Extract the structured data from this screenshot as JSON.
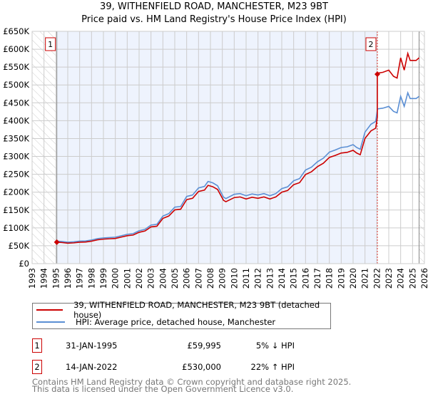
{
  "title": "39, WITHENFIELD ROAD, MANCHESTER, M23 9BT",
  "subtitle": "Price paid vs. HM Land Registry's House Price Index (HPI)",
  "colors": {
    "property": "#cc0000",
    "hpi": "#5b8fd4",
    "shade": "#eef3fd"
  },
  "chart_data": {
    "type": "line",
    "ylim": [
      0,
      650000
    ],
    "xlim": [
      1993,
      2026
    ],
    "yticks": [
      "£0",
      "£50K",
      "£100K",
      "£150K",
      "£200K",
      "£250K",
      "£300K",
      "£350K",
      "£400K",
      "£450K",
      "£500K",
      "£550K",
      "£600K",
      "£650K"
    ],
    "xticks": [
      "1993",
      "1994",
      "1995",
      "1996",
      "1997",
      "1998",
      "1999",
      "2000",
      "2001",
      "2002",
      "2003",
      "2004",
      "2005",
      "2006",
      "2007",
      "2008",
      "2009",
      "2010",
      "2011",
      "2012",
      "2013",
      "2014",
      "2015",
      "2016",
      "2017",
      "2018",
      "2019",
      "2020",
      "2021",
      "2022",
      "2023",
      "2024",
      "2025",
      "2026"
    ],
    "series": [
      {
        "name": "HPI: Average price, detached house, Manchester",
        "x": [
          1995.08,
          1995.5,
          1996,
          1996.5,
          1997,
          1997.5,
          1998,
          1998.5,
          1999,
          1999.5,
          2000,
          2000.5,
          2001,
          2001.5,
          2002,
          2002.5,
          2003,
          2003.5,
          2004,
          2004.5,
          2005,
          2005.5,
          2006,
          2006.5,
          2007,
          2007.5,
          2007.8,
          2008.2,
          2008.6,
          2009.1,
          2009.3,
          2010,
          2010.5,
          2011,
          2011.5,
          2012,
          2012.5,
          2013,
          2013.5,
          2014,
          2014.5,
          2015,
          2015.5,
          2016,
          2016.5,
          2017,
          2017.5,
          2018,
          2018.5,
          2019,
          2019.5,
          2020,
          2020.3,
          2020.6,
          2021,
          2021.5,
          2021.9,
          2022.05,
          2022.5,
          2023,
          2023.4,
          2023.7,
          2024,
          2024.3,
          2024.6,
          2024.8,
          2025,
          2025.3,
          2025.55
        ],
        "values": [
          63000,
          62000,
          60000,
          61000,
          63000,
          63500,
          66000,
          70000,
          72000,
          73000,
          74000,
          78000,
          82000,
          84000,
          92000,
          96000,
          108000,
          110000,
          133000,
          140000,
          158000,
          160000,
          188000,
          192000,
          212000,
          216000,
          230000,
          226000,
          218000,
          186000,
          182000,
          194000,
          196000,
          190000,
          195000,
          192000,
          196000,
          190000,
          196000,
          210000,
          215000,
          232000,
          238000,
          262000,
          270000,
          285000,
          295000,
          312000,
          318000,
          325000,
          327000,
          333000,
          325000,
          320000,
          368000,
          390000,
          398000,
          433000,
          435000,
          440000,
          426000,
          422000,
          468000,
          440000,
          478000,
          462000,
          462000,
          462000,
          468000
        ]
      },
      {
        "name": "39, WITHENFIELD ROAD, MANCHESTER, M23 9BT (detached house)",
        "x": [],
        "values": []
      }
    ],
    "sales": [
      {
        "label": "1",
        "year": 1995.08,
        "price": 59995
      },
      {
        "label": "2",
        "year": 2022.04,
        "price": 530000
      }
    ]
  },
  "legend": {
    "property": "39, WITHENFIELD ROAD, MANCHESTER, M23 9BT (detached house)",
    "hpi": "HPI: Average price, detached house, Manchester"
  },
  "sales_table": [
    {
      "n": "1",
      "date": "31-JAN-1995",
      "price": "£59,995",
      "delta": "5% ↓ HPI"
    },
    {
      "n": "2",
      "date": "14-JAN-2022",
      "price": "£530,000",
      "delta": "22% ↑ HPI"
    }
  ],
  "footer": [
    "Contains HM Land Registry data © Crown copyright and database right 2025.",
    "This data is licensed under the Open Government Licence v3.0."
  ]
}
